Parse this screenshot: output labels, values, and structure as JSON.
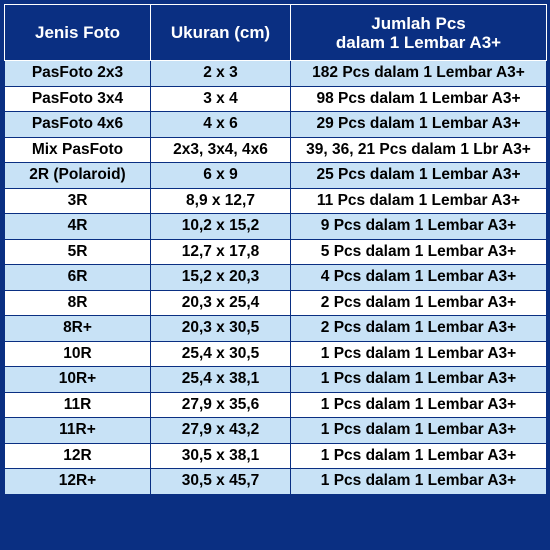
{
  "header": {
    "col1": "Jenis Foto",
    "col2": "Ukuran (cm)",
    "col3_line1": "Jumlah Pcs",
    "col3_line2": "dalam 1 Lembar A3+"
  },
  "rows": [
    {
      "jenis": "PasFoto 2x3",
      "ukuran": "2 x 3",
      "jumlah": "182 Pcs dalam 1 Lembar A3+"
    },
    {
      "jenis": "PasFoto 3x4",
      "ukuran": "3 x 4",
      "jumlah": "98 Pcs dalam 1 Lembar A3+"
    },
    {
      "jenis": "PasFoto 4x6",
      "ukuran": "4 x 6",
      "jumlah": "29 Pcs dalam 1 Lembar A3+"
    },
    {
      "jenis": "Mix PasFoto",
      "ukuran": "2x3, 3x4, 4x6",
      "jumlah": "39, 36, 21 Pcs dalam 1 Lbr A3+"
    },
    {
      "jenis": "2R (Polaroid)",
      "ukuran": "6 x 9",
      "jumlah": "25 Pcs dalam 1 Lembar A3+"
    },
    {
      "jenis": "3R",
      "ukuran": "8,9 x 12,7",
      "jumlah": "11 Pcs dalam 1 Lembar A3+"
    },
    {
      "jenis": "4R",
      "ukuran": "10,2 x 15,2",
      "jumlah": "9 Pcs dalam 1 Lembar A3+"
    },
    {
      "jenis": "5R",
      "ukuran": "12,7 x 17,8",
      "jumlah": "5 Pcs dalam 1 Lembar A3+"
    },
    {
      "jenis": "6R",
      "ukuran": "15,2 x 20,3",
      "jumlah": "4 Pcs dalam 1 Lembar A3+"
    },
    {
      "jenis": "8R",
      "ukuran": "20,3 x 25,4",
      "jumlah": "2 Pcs dalam 1 Lembar A3+"
    },
    {
      "jenis": "8R+",
      "ukuran": "20,3 x 30,5",
      "jumlah": "2 Pcs dalam 1 Lembar A3+"
    },
    {
      "jenis": "10R",
      "ukuran": "25,4 x 30,5",
      "jumlah": "1 Pcs dalam 1 Lembar A3+"
    },
    {
      "jenis": "10R+",
      "ukuran": "25,4 x 38,1",
      "jumlah": "1 Pcs dalam 1 Lembar A3+"
    },
    {
      "jenis": "11R",
      "ukuran": "27,9 x 35,6",
      "jumlah": "1 Pcs dalam 1 Lembar A3+"
    },
    {
      "jenis": "11R+",
      "ukuran": "27,9 x 43,2",
      "jumlah": "1 Pcs dalam 1 Lembar A3+"
    },
    {
      "jenis": "12R",
      "ukuran": "30,5 x 38,1",
      "jumlah": "1 Pcs dalam 1 Lembar A3+"
    },
    {
      "jenis": "12R+",
      "ukuran": "30,5 x 45,7",
      "jumlah": "1 Pcs dalam 1 Lembar A3+"
    }
  ],
  "colors": {
    "header_bg": "#0a2f82",
    "row_alt_bg": "#c8e2f6",
    "row_bg": "#ffffff"
  }
}
